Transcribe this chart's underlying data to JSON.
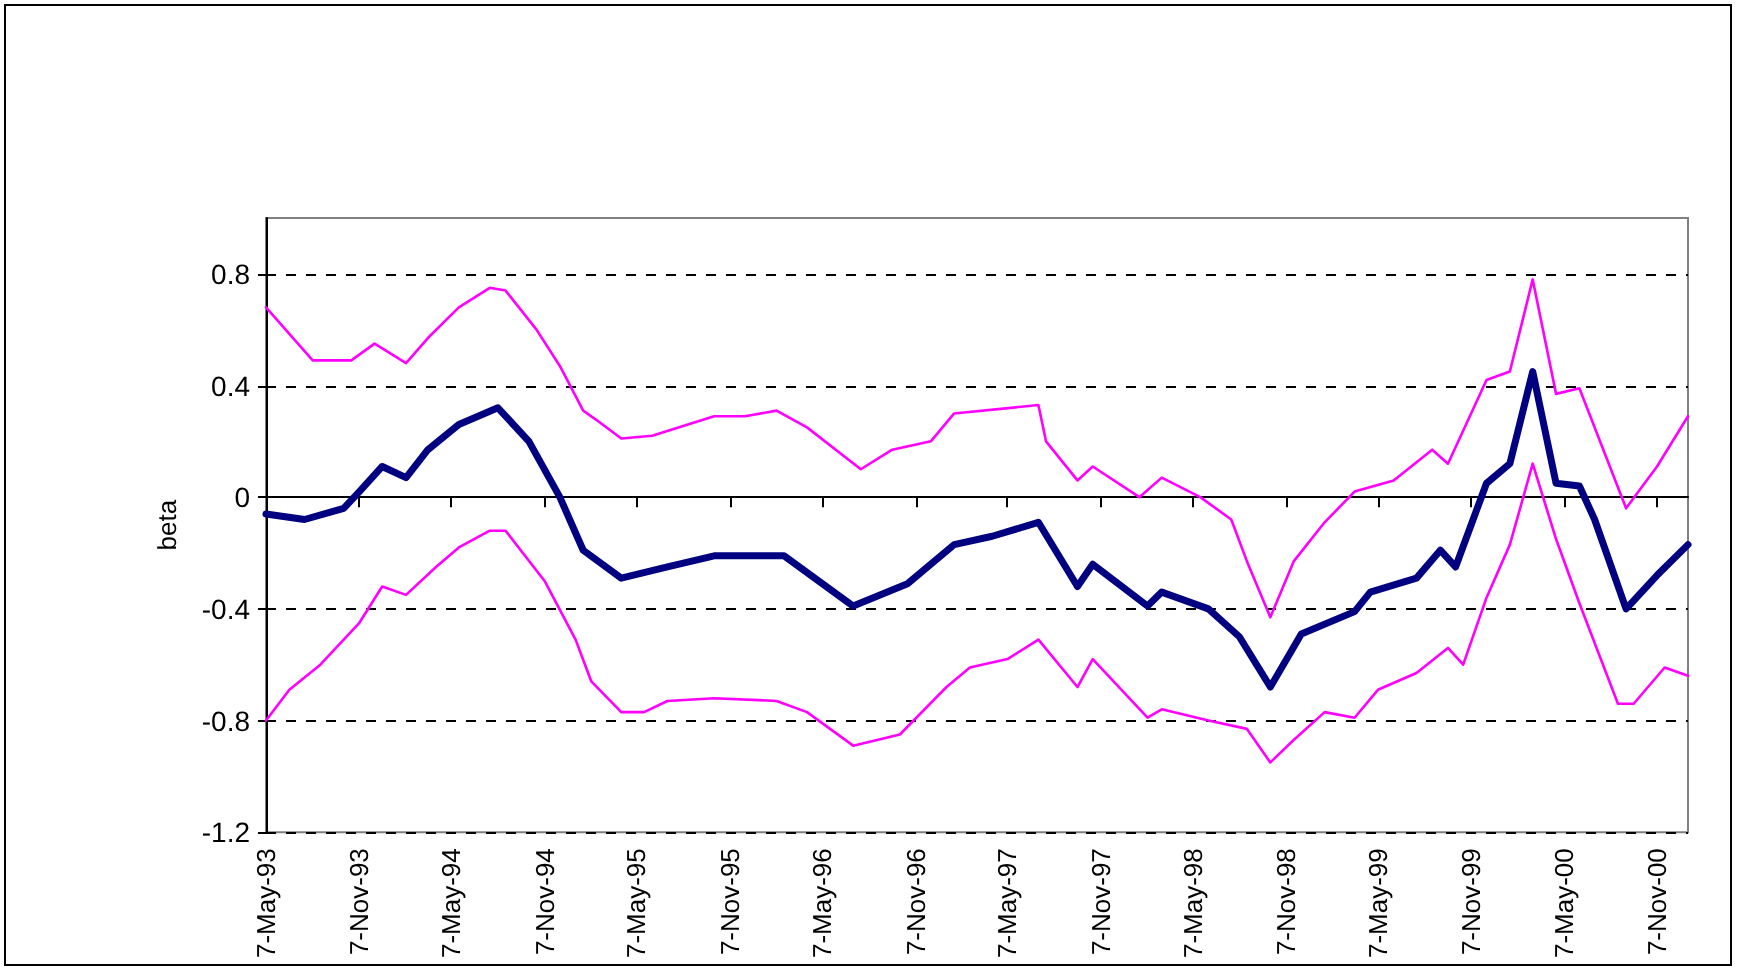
{
  "chart_data": {
    "type": "line",
    "ylabel": "beta",
    "xlim": [
      "1993-05-07",
      "2001-01-07"
    ],
    "xticks": [
      {
        "value": "1993-05-07",
        "label": "7-May-93"
      },
      {
        "value": "1993-11-07",
        "label": "7-Nov-93"
      },
      {
        "value": "1994-05-07",
        "label": "7-May-94"
      },
      {
        "value": "1994-11-07",
        "label": "7-Nov-94"
      },
      {
        "value": "1995-05-07",
        "label": "7-May-95"
      },
      {
        "value": "1995-11-07",
        "label": "7-Nov-95"
      },
      {
        "value": "1996-05-07",
        "label": "7-May-96"
      },
      {
        "value": "1996-11-07",
        "label": "7-Nov-96"
      },
      {
        "value": "1997-05-07",
        "label": "7-May-97"
      },
      {
        "value": "1997-11-07",
        "label": "7-Nov-97"
      },
      {
        "value": "1998-05-07",
        "label": "7-May-98"
      },
      {
        "value": "1998-11-07",
        "label": "7-Nov-98"
      },
      {
        "value": "1999-05-07",
        "label": "7-May-99"
      },
      {
        "value": "1999-11-07",
        "label": "7-Nov-99"
      },
      {
        "value": "2000-05-07",
        "label": "7-May-00"
      },
      {
        "value": "2000-11-07",
        "label": "7-Nov-00"
      }
    ],
    "ylim": [
      -1.2,
      1.0
    ],
    "yticks": [
      -1.2,
      -0.8,
      -0.4,
      0,
      0.4,
      0.8
    ],
    "grid": "y",
    "marker": "none",
    "line_style": "solid",
    "series": [
      {
        "color": "#ff00ff",
        "x": [
          "1993-05-07",
          "1993-08-07",
          "1993-10-22",
          "1993-12-07",
          "1994-02-07",
          "1994-03-22",
          "1994-05-22",
          "1994-07-22",
          "1994-08-22",
          "1994-10-22",
          "1994-12-07",
          "1995-01-22",
          "1995-02-22",
          "1995-04-07",
          "1995-06-07",
          "1995-10-07",
          "1995-12-07",
          "1996-02-07",
          "1996-04-07",
          "1996-07-22",
          "1996-09-22",
          "1996-12-07",
          "1997-01-22",
          "1997-07-07",
          "1997-07-22",
          "1997-09-22",
          "1997-10-22",
          "1998-01-22",
          "1998-03-07",
          "1998-05-22",
          "1998-07-22",
          "1998-08-22",
          "1998-10-07",
          "1998-11-22",
          "1999-01-22",
          "1999-03-22",
          "1999-06-07",
          "1999-08-22",
          "1999-09-22",
          "1999-12-07",
          "2000-01-22",
          "2000-03-07",
          "2000-04-22",
          "2000-06-07",
          "2000-09-07",
          "2000-11-07",
          "2001-01-07"
        ],
        "values": [
          0.68,
          0.49,
          0.49,
          0.55,
          0.48,
          0.57,
          0.68,
          0.75,
          0.74,
          0.6,
          0.47,
          0.31,
          0.27,
          0.21,
          0.22,
          0.29,
          0.29,
          0.31,
          0.25,
          0.1,
          0.17,
          0.2,
          0.3,
          0.33,
          0.2,
          0.06,
          0.11,
          0.0,
          0.07,
          0.0,
          -0.08,
          -0.23,
          -0.43,
          -0.23,
          -0.09,
          0.02,
          0.06,
          0.17,
          0.12,
          0.42,
          0.45,
          0.78,
          0.37,
          0.39,
          -0.04,
          0.11,
          0.29
        ]
      },
      {
        "color": "#ff00ff",
        "x": [
          "1993-05-07",
          "1993-06-22",
          "1993-08-22",
          "1993-11-07",
          "1993-12-22",
          "1994-02-07",
          "1994-04-07",
          "1994-05-22",
          "1994-07-22",
          "1994-08-22",
          "1994-11-07",
          "1995-01-07",
          "1995-02-07",
          "1995-04-07",
          "1995-05-22",
          "1995-07-07",
          "1995-10-07",
          "1996-02-07",
          "1996-04-07",
          "1996-07-07",
          "1996-10-07",
          "1997-01-07",
          "1997-02-22",
          "1997-05-07",
          "1997-07-07",
          "1997-09-22",
          "1997-10-22",
          "1998-02-07",
          "1998-03-07",
          "1998-06-07",
          "1998-08-22",
          "1998-10-07",
          "1998-11-22",
          "1999-01-22",
          "1999-03-22",
          "1999-05-07",
          "1999-07-22",
          "1999-09-22",
          "1999-10-22",
          "1999-12-07",
          "2000-01-22",
          "2000-03-07",
          "2000-04-22",
          "2000-06-07",
          "2000-08-22",
          "2000-09-22",
          "2000-11-22",
          "2001-01-07"
        ],
        "values": [
          -0.8,
          -0.69,
          -0.6,
          -0.45,
          -0.32,
          -0.35,
          -0.25,
          -0.18,
          -0.12,
          -0.12,
          -0.3,
          -0.51,
          -0.66,
          -0.77,
          -0.77,
          -0.73,
          -0.72,
          -0.73,
          -0.77,
          -0.89,
          -0.85,
          -0.68,
          -0.61,
          -0.58,
          -0.51,
          -0.68,
          -0.58,
          -0.79,
          -0.76,
          -0.8,
          -0.83,
          -0.95,
          -0.87,
          -0.77,
          -0.79,
          -0.69,
          -0.63,
          -0.54,
          -0.6,
          -0.36,
          -0.17,
          0.12,
          -0.15,
          -0.38,
          -0.74,
          -0.74,
          -0.61,
          -0.64
        ]
      },
      {
        "color": "#000080",
        "x": [
          "1993-05-07",
          "1993-07-22",
          "1993-10-07",
          "1993-11-07",
          "1993-12-22",
          "1994-02-07",
          "1994-03-22",
          "1994-05-22",
          "1994-08-07",
          "1994-10-07",
          "1994-12-07",
          "1995-01-22",
          "1995-04-07",
          "1995-07-07",
          "1995-10-07",
          "1996-02-22",
          "1996-07-07",
          "1996-10-22",
          "1997-01-22",
          "1997-04-07",
          "1997-07-07",
          "1997-09-22",
          "1997-10-22",
          "1998-02-07",
          "1998-03-07",
          "1998-06-07",
          "1998-08-07",
          "1998-10-07",
          "1998-12-07",
          "1999-03-22",
          "1999-04-22",
          "1999-07-22",
          "1999-09-07",
          "1999-10-07",
          "1999-12-07",
          "2000-01-22",
          "2000-03-07",
          "2000-04-22",
          "2000-06-07",
          "2000-07-07",
          "2000-09-07",
          "2000-11-07",
          "2001-01-07"
        ],
        "values": [
          -0.06,
          -0.08,
          -0.04,
          0.02,
          0.11,
          0.07,
          0.17,
          0.26,
          0.32,
          0.2,
          0.0,
          -0.19,
          -0.29,
          -0.25,
          -0.21,
          -0.21,
          -0.39,
          -0.31,
          -0.17,
          -0.14,
          -0.09,
          -0.32,
          -0.24,
          -0.39,
          -0.34,
          -0.4,
          -0.5,
          -0.68,
          -0.49,
          -0.41,
          -0.34,
          -0.29,
          -0.19,
          -0.25,
          0.05,
          0.12,
          0.45,
          0.05,
          0.04,
          -0.08,
          -0.4,
          -0.28,
          -0.17
        ]
      }
    ]
  }
}
